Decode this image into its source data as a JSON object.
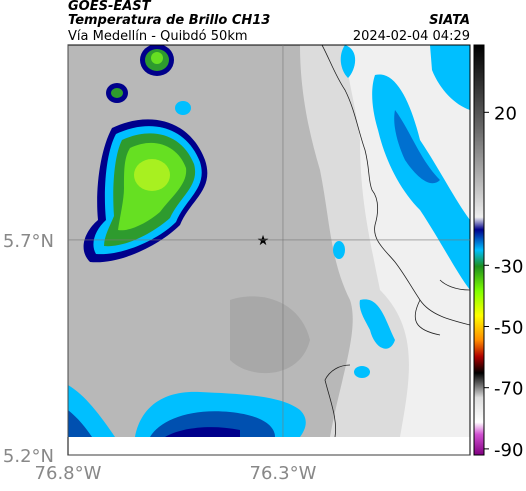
{
  "header": {
    "source": "GOES-EAST",
    "title": "Temperatura de Brillo CH13",
    "subtitle": "Vía Medellín - Quibdó 50km",
    "org": "SIATA",
    "datetime": "2024-02-04 04:29"
  },
  "map": {
    "xlim": [
      -76.8,
      -75.865
    ],
    "ylim": [
      5.2,
      6.153
    ],
    "xticks": [
      {
        "value": -76.8,
        "label": "76.8°W"
      },
      {
        "value": -76.3,
        "label": "76.3°W"
      }
    ],
    "yticks": [
      {
        "value": 5.2,
        "label": "5.2°N"
      },
      {
        "value": 5.7,
        "label": "5.7°N"
      }
    ]
  },
  "colorbar": {
    "lim": [
      -92,
      42
    ],
    "ticks": [
      20,
      -30,
      -50,
      -70,
      -90
    ]
  }
}
